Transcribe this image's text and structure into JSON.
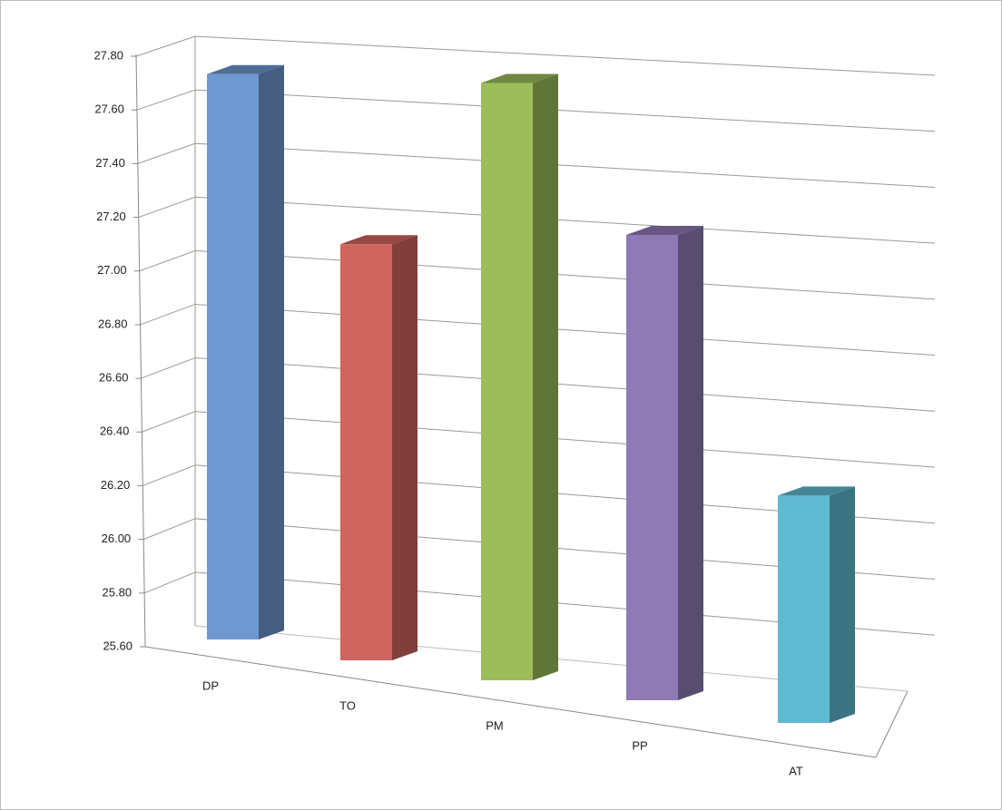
{
  "chart_data": {
    "type": "bar3d",
    "categories": [
      "DP",
      "TO",
      "PM",
      "PP",
      "AT"
    ],
    "values": [
      27.72,
      27.08,
      27.62,
      27.1,
      26.3
    ],
    "colors": [
      "#6e98d0",
      "#d0645f",
      "#9dbd5b",
      "#8f7ab6",
      "#5fb9d1"
    ],
    "ylim": [
      25.6,
      27.8
    ],
    "yticks": [
      {
        "value": 25.6,
        "label": "25.60"
      },
      {
        "value": 25.8,
        "label": "25.80"
      },
      {
        "value": 26.0,
        "label": "26.00"
      },
      {
        "value": 26.2,
        "label": "26.20"
      },
      {
        "value": 26.4,
        "label": "26.40"
      },
      {
        "value": 26.6,
        "label": "26.60"
      },
      {
        "value": 26.8,
        "label": "26.80"
      },
      {
        "value": 27.0,
        "label": "27.00"
      },
      {
        "value": 27.2,
        "label": "27.20"
      },
      {
        "value": 27.4,
        "label": "27.40"
      },
      {
        "value": 27.6,
        "label": "27.60"
      },
      {
        "value": 27.8,
        "label": "27.80"
      }
    ],
    "grid": true
  }
}
